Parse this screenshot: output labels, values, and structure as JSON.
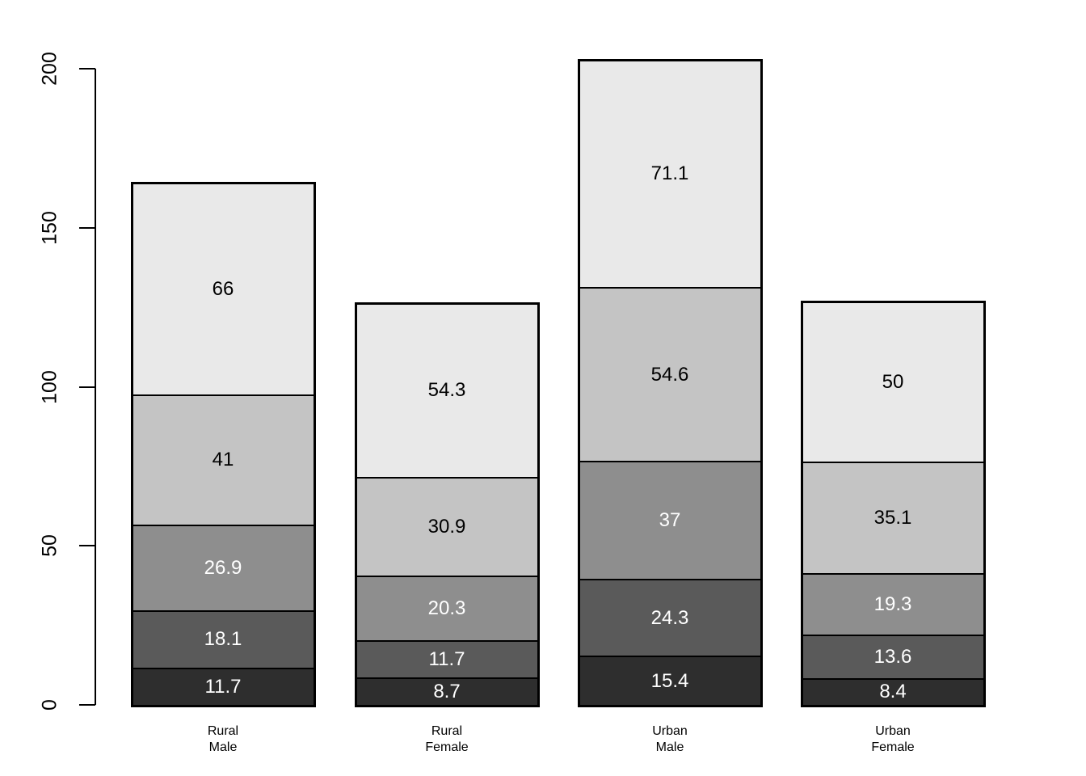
{
  "chart_data": {
    "type": "bar",
    "stacked": true,
    "title": "",
    "xlabel": "",
    "ylabel": "",
    "background": "#FFFFFF",
    "grid": false,
    "legend": false,
    "y_axis": {
      "ticks": [
        "0",
        "50",
        "100",
        "150",
        "200"
      ],
      "tick_values": [
        0,
        50,
        100,
        150,
        200
      ],
      "range": [
        0,
        200
      ]
    },
    "categories": [
      {
        "lines": [
          "Rural",
          "Male"
        ]
      },
      {
        "lines": [
          "Rural",
          "Female"
        ]
      },
      {
        "lines": [
          "Urban",
          "Male"
        ]
      },
      {
        "lines": [
          "Urban",
          "Female"
        ]
      }
    ],
    "bars": [
      {
        "segments": [
          {
            "value": 11.7,
            "label": "11.7"
          },
          {
            "value": 18.1,
            "label": "18.1"
          },
          {
            "value": 26.9,
            "label": "26.9"
          },
          {
            "value": 41.0,
            "label": "41"
          },
          {
            "value": 66.0,
            "label": "66"
          }
        ]
      },
      {
        "segments": [
          {
            "value": 8.7,
            "label": "8.7"
          },
          {
            "value": 11.7,
            "label": "11.7"
          },
          {
            "value": 20.3,
            "label": "20.3"
          },
          {
            "value": 30.9,
            "label": "30.9"
          },
          {
            "value": 54.3,
            "label": "54.3"
          }
        ]
      },
      {
        "segments": [
          {
            "value": 15.4,
            "label": "15.4"
          },
          {
            "value": 24.3,
            "label": "24.3"
          },
          {
            "value": 37.0,
            "label": "37"
          },
          {
            "value": 54.6,
            "label": "54.6"
          },
          {
            "value": 71.1,
            "label": "71.1"
          }
        ]
      },
      {
        "segments": [
          {
            "value": 8.4,
            "label": "8.4"
          },
          {
            "value": 13.6,
            "label": "13.6"
          },
          {
            "value": 19.3,
            "label": "19.3"
          },
          {
            "value": 35.1,
            "label": "35.1"
          },
          {
            "value": 50.0,
            "label": "50"
          }
        ]
      }
    ],
    "segment_colors": [
      "#2E2E2E",
      "#5A5A5A",
      "#8E8E8E",
      "#C4C4C4",
      "#E9E9E9"
    ],
    "segment_label_colors": [
      "#FFFFFF",
      "#FFFFFF",
      "#FFFFFF",
      "#000000",
      "#000000"
    ],
    "axis_color": "#000000"
  }
}
